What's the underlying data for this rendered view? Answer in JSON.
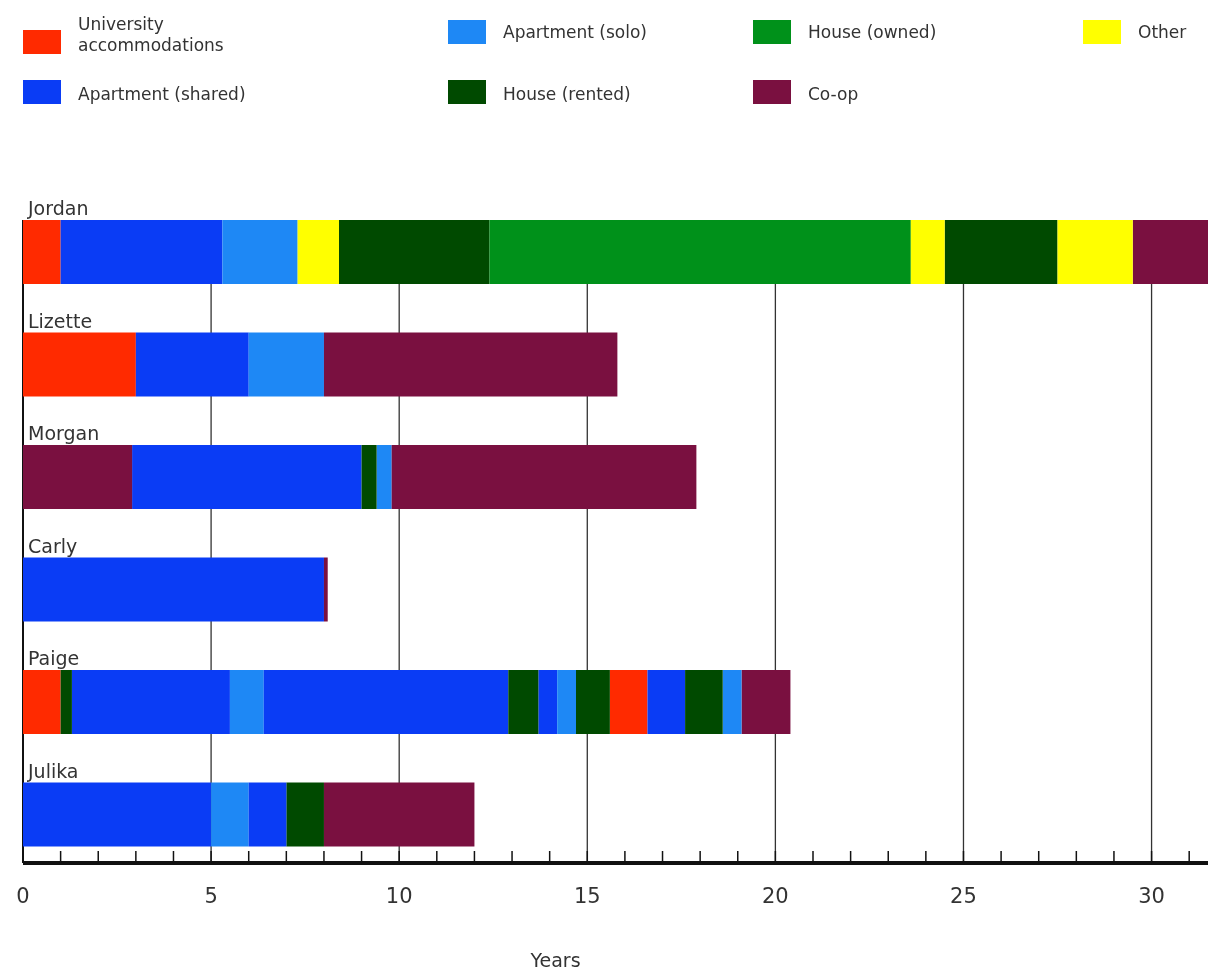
{
  "chart_data": {
    "type": "bar",
    "orientation": "horizontal",
    "xlabel": "Years",
    "categories": [
      "Jordan",
      "Lizette",
      "Morgan",
      "Carly",
      "Paige",
      "Julika"
    ],
    "xlim": [
      0,
      31.5
    ],
    "xticks": [
      0,
      {
        "value": 1,
        "label": null
      },
      {
        "value": 2,
        "label": null
      },
      {
        "value": 3,
        "label": null
      },
      {
        "value": 4,
        "label": null
      },
      5,
      {
        "value": 6,
        "label": null
      },
      {
        "value": 7,
        "label": null
      },
      {
        "value": 8,
        "label": null
      },
      {
        "value": 9,
        "label": null
      },
      10,
      {
        "value": 11,
        "label": null
      },
      {
        "value": 12,
        "label": null
      },
      {
        "value": 13,
        "label": null
      },
      {
        "value": 14,
        "label": null
      },
      15,
      {
        "value": 16,
        "label": null
      },
      {
        "value": 17,
        "label": null
      },
      {
        "value": 18,
        "label": null
      },
      {
        "value": 19,
        "label": null
      },
      20,
      {
        "value": 21,
        "label": null
      },
      {
        "value": 22,
        "label": null
      },
      {
        "value": 23,
        "label": null
      },
      {
        "value": 24,
        "label": null
      },
      25,
      {
        "value": 26,
        "label": null
      },
      {
        "value": 27,
        "label": null
      },
      {
        "value": 28,
        "label": null
      },
      {
        "value": 29,
        "label": null
      },
      30,
      {
        "value": 31,
        "label": null
      }
    ],
    "grid": "x",
    "legend": "top",
    "series": [
      {
        "name": "University accommodations",
        "color": "#ff2a00",
        "base": [
          0,
          0,
          null,
          null,
          0,
          null
        ],
        "values": [
          1,
          3,
          null,
          null,
          1,
          null
        ]
      },
      {
        "name": "Apartment (shared)",
        "color": "#0a3cf5",
        "base": [
          1,
          3,
          2.9,
          0,
          1.3,
          0
        ],
        "values": [
          4.3,
          3,
          6.1,
          8,
          4.2,
          5
        ]
      },
      {
        "name": "Apartment (solo)",
        "color": "#1e88f5",
        "base": [
          5.3,
          6,
          9.4,
          null,
          5.5,
          5
        ],
        "values": [
          2,
          2,
          0.4,
          null,
          0.9,
          1
        ]
      },
      {
        "name": "House (rented)",
        "color": "#004a00",
        "base": [
          8.4,
          null,
          9,
          null,
          1,
          7
        ],
        "values": [
          4,
          null,
          0.4,
          null,
          0.3,
          1
        ]
      },
      {
        "name": "House (owned)",
        "color": "#00911a",
        "base": [
          12.4,
          null,
          null,
          null,
          null,
          null
        ],
        "values": [
          11.2,
          null,
          null,
          null,
          null,
          null
        ]
      },
      {
        "name": "Co-op",
        "color": "#7a1040",
        "base": [
          29.5,
          8,
          0,
          8,
          19.1,
          8
        ],
        "values": [
          2,
          7.8,
          2.9,
          0.1,
          1.3,
          4
        ]
      },
      {
        "name": "Other",
        "color": "#ffff00",
        "base": [
          7.3,
          null,
          null,
          null,
          null,
          null
        ],
        "values": [
          1.1,
          null,
          null,
          null,
          null,
          null
        ]
      },
      {
        "color": "#ff2a00",
        "base": [
          null,
          null,
          null,
          null,
          15.6,
          null
        ],
        "values": [
          null,
          null,
          null,
          null,
          1,
          null
        ]
      },
      {
        "color": "#0a3cf5",
        "base": [
          null,
          null,
          null,
          null,
          6.4,
          6
        ],
        "values": [
          null,
          null,
          null,
          null,
          6.5,
          1
        ]
      },
      {
        "color": "#0a3cf5",
        "base": [
          null,
          null,
          null,
          null,
          13.7,
          null
        ],
        "values": [
          null,
          null,
          null,
          null,
          0.5,
          null
        ]
      },
      {
        "color": "#0a3cf5",
        "base": [
          null,
          null,
          null,
          null,
          16.6,
          null
        ],
        "values": [
          null,
          null,
          null,
          null,
          1,
          null
        ]
      },
      {
        "color": "#1e88f5",
        "base": [
          null,
          null,
          null,
          null,
          14.2,
          null
        ],
        "values": [
          null,
          null,
          null,
          null,
          0.5,
          null
        ]
      },
      {
        "color": "#1e88f5",
        "base": [
          null,
          null,
          null,
          null,
          18.6,
          null
        ],
        "values": [
          null,
          null,
          null,
          null,
          0.5,
          null
        ]
      },
      {
        "color": "#004a00",
        "base": [
          24.5,
          null,
          null,
          null,
          12.9,
          null
        ],
        "values": [
          3,
          null,
          null,
          null,
          0.8,
          null
        ]
      },
      {
        "color": "#004a00",
        "base": [
          null,
          null,
          null,
          null,
          14.7,
          null
        ],
        "values": [
          null,
          null,
          null,
          null,
          0.9,
          null
        ]
      },
      {
        "color": "#004a00",
        "base": [
          null,
          null,
          null,
          null,
          17.6,
          null
        ],
        "values": [
          null,
          null,
          null,
          null,
          1,
          null
        ]
      },
      {
        "color": "#ffff00",
        "base": [
          23.6,
          null,
          null,
          null,
          null,
          null
        ],
        "values": [
          0.9,
          null,
          null,
          null,
          null,
          null
        ]
      },
      {
        "color": "#ffff00",
        "base": [
          27.5,
          null,
          null,
          null,
          null,
          null
        ],
        "values": [
          2,
          null,
          null,
          null,
          null,
          null
        ]
      },
      {
        "color": "#7a1040",
        "base": [
          null,
          null,
          9.8,
          null,
          null,
          null
        ],
        "values": [
          null,
          null,
          8.1,
          null,
          null,
          null
        ]
      }
    ]
  }
}
